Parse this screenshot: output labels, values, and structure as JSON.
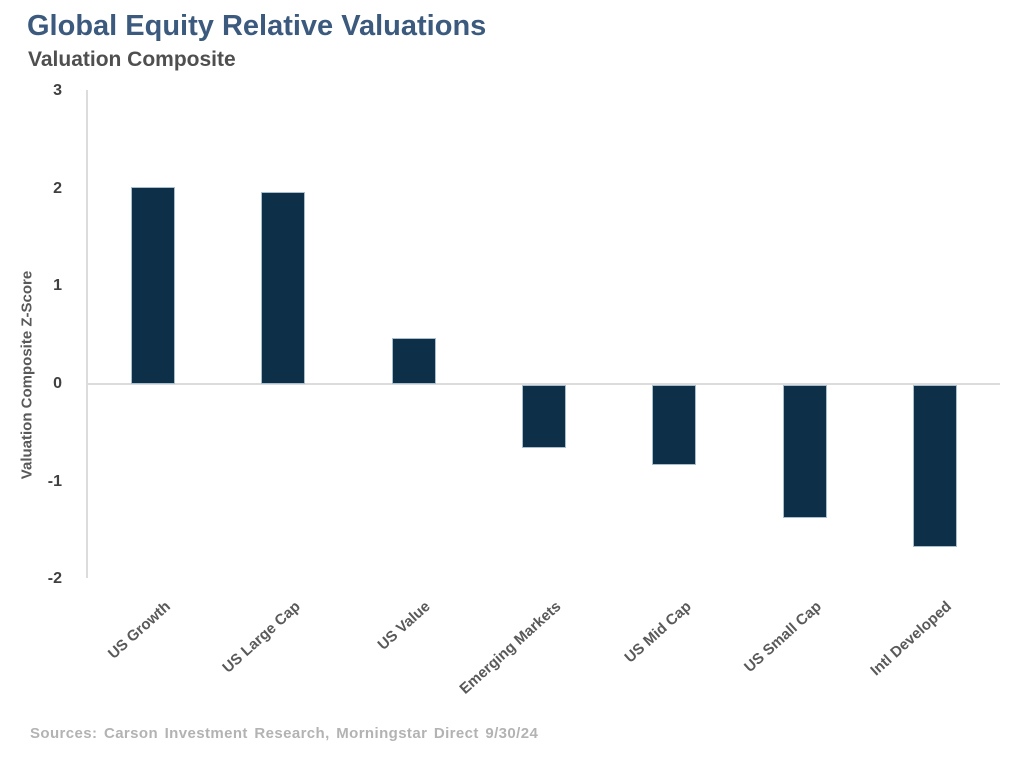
{
  "header": {
    "title": "Global Equity Relative Valuations",
    "subtitle": "Valuation Composite"
  },
  "chart_data": {
    "type": "bar",
    "title": "Global Equity Relative Valuations",
    "subtitle": "Valuation Composite",
    "categories": [
      "US Growth",
      "US Large Cap",
      "US Value",
      "Emerging Markets",
      "US Mid Cap",
      "US Small Cap",
      "Intl Developed"
    ],
    "values": [
      2.02,
      1.97,
      0.47,
      -0.65,
      -0.82,
      -1.36,
      -1.66
    ],
    "xlabel": "",
    "ylabel": "Valuation Composite Z-Score",
    "yticks": [
      3,
      2,
      1,
      0,
      -1,
      -2
    ],
    "ylim": [
      -2,
      3
    ],
    "grid": false,
    "legend": "none",
    "zero_baseline": true
  },
  "footer": {
    "source": "Sources: Carson Investment Research, Morningstar Direct 9/30/24"
  },
  "colors": {
    "title_text": "#3c5a7e",
    "subtitle_text": "#4f4f4f",
    "tick_text": "#404040",
    "label_text": "#595959",
    "source_text": "#b3b3b3",
    "bar_fill": "#0e2f48",
    "bar_border": "#a9becd",
    "line": "#dcdcdc",
    "background": "#ffffff"
  }
}
